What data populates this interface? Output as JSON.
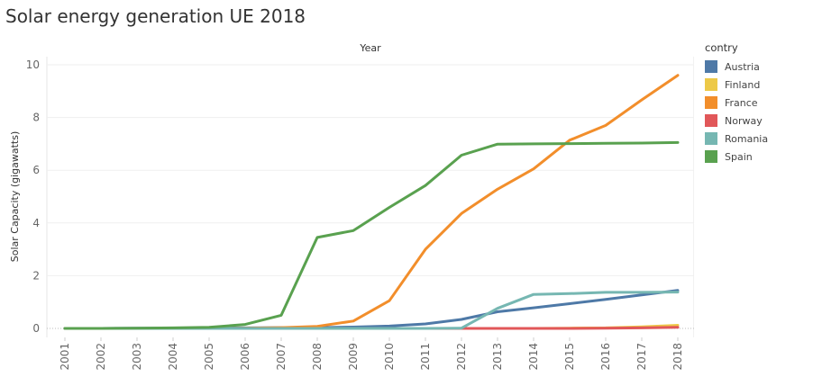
{
  "title": "Solar energy generation UE 2018",
  "legend": {
    "title": "contry",
    "items": [
      {
        "label": "Austria",
        "color": "#4e79a7"
      },
      {
        "label": "Finland",
        "color": "#edc948"
      },
      {
        "label": "France",
        "color": "#f28e2b"
      },
      {
        "label": "Norway",
        "color": "#e15759"
      },
      {
        "label": "Romania",
        "color": "#76b7b2"
      },
      {
        "label": "Spain",
        "color": "#59a14f"
      }
    ]
  },
  "chart_data": {
    "type": "line",
    "title": "Solar energy generation UE 2018",
    "xlabel": "Year",
    "ylabel": "Solar Capacity (gigawatts)",
    "x": [
      "2001",
      "2002",
      "2003",
      "2004",
      "2005",
      "2006",
      "2007",
      "2008",
      "2009",
      "2010",
      "2011",
      "2012",
      "2013",
      "2014",
      "2015",
      "2016",
      "2017",
      "2018"
    ],
    "ylim": [
      0,
      10
    ],
    "yticks": [
      0,
      2,
      4,
      6,
      8,
      10
    ],
    "grid": true,
    "legend_position": "right",
    "series": [
      {
        "name": "Austria",
        "color": "#4e79a7",
        "values": [
          0.0,
          0.0,
          0.01,
          0.01,
          0.02,
          0.02,
          0.03,
          0.03,
          0.05,
          0.09,
          0.17,
          0.34,
          0.63,
          0.78,
          0.94,
          1.1,
          1.27,
          1.44
        ]
      },
      {
        "name": "Finland",
        "color": "#edc948",
        "values": [
          0.0,
          0.0,
          0.0,
          0.0,
          0.0,
          0.0,
          0.0,
          0.0,
          0.0,
          0.0,
          0.0,
          0.0,
          0.0,
          0.0,
          0.01,
          0.02,
          0.06,
          0.12
        ]
      },
      {
        "name": "France",
        "color": "#f28e2b",
        "values": [
          0.0,
          0.0,
          0.0,
          0.0,
          0.0,
          0.01,
          0.03,
          0.08,
          0.28,
          1.05,
          3.0,
          4.36,
          5.28,
          6.05,
          7.14,
          7.7,
          8.67,
          9.6
        ]
      },
      {
        "name": "Norway",
        "color": "#e15759",
        "values": [
          0.0,
          0.0,
          0.0,
          0.0,
          0.0,
          0.0,
          0.0,
          0.0,
          0.0,
          0.0,
          0.0,
          0.0,
          0.0,
          0.0,
          0.0,
          0.01,
          0.02,
          0.04
        ]
      },
      {
        "name": "Romania",
        "color": "#76b7b2",
        "values": [
          0.0,
          0.0,
          0.0,
          0.0,
          0.0,
          0.0,
          0.0,
          0.0,
          0.0,
          0.0,
          0.0,
          0.01,
          0.76,
          1.29,
          1.32,
          1.37,
          1.37,
          1.38
        ]
      },
      {
        "name": "Spain",
        "color": "#59a14f",
        "values": [
          0.0,
          0.0,
          0.01,
          0.02,
          0.04,
          0.15,
          0.5,
          3.45,
          3.71,
          4.59,
          5.42,
          6.57,
          6.99,
          7.0,
          7.01,
          7.02,
          7.03,
          7.05
        ]
      }
    ]
  }
}
